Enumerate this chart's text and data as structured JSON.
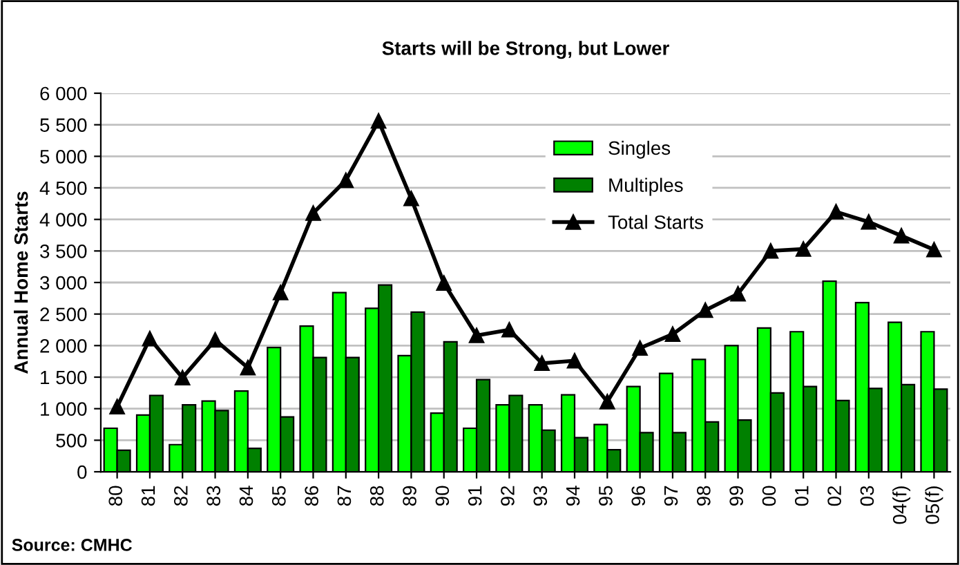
{
  "chart_data": {
    "type": "bar",
    "title": "Starts will be Strong, but Lower",
    "ylabel": "Annual Home Starts",
    "categories": [
      "80",
      "81",
      "82",
      "83",
      "84",
      "85",
      "86",
      "87",
      "88",
      "89",
      "90",
      "91",
      "92",
      "93",
      "94",
      "95",
      "96",
      "97",
      "98",
      "99",
      "00",
      "01",
      "02",
      "03",
      "04(f)",
      "05(f)"
    ],
    "series": [
      {
        "name": "Singles",
        "color": "#00ff00",
        "values": [
          690,
          900,
          430,
          1120,
          1280,
          1970,
          2310,
          2840,
          2590,
          1840,
          930,
          690,
          1060,
          1060,
          1220,
          750,
          1350,
          1560,
          1780,
          2000,
          2280,
          2220,
          3020,
          2680,
          2370,
          2220
        ]
      },
      {
        "name": "Multiples",
        "color": "#008000",
        "values": [
          340,
          1210,
          1060,
          970,
          370,
          870,
          1810,
          1810,
          2960,
          2530,
          2060,
          1460,
          1210,
          660,
          540,
          350,
          620,
          620,
          790,
          820,
          1250,
          1350,
          1130,
          1320,
          1380,
          1310
        ]
      },
      {
        "name": "Total Starts",
        "type": "line",
        "color": "#000000",
        "marker": "triangle",
        "values": [
          1030,
          2110,
          1490,
          2090,
          1650,
          2840,
          4100,
          4620,
          5560,
          4330,
          2990,
          2160,
          2250,
          1720,
          1760,
          1110,
          1960,
          2180,
          2560,
          2820,
          3500,
          3530,
          4120,
          3960,
          3740,
          3520
        ]
      }
    ],
    "ylim": [
      0,
      6000
    ],
    "yticks": [
      0,
      500,
      {
        "value": 1000,
        "label": "1 000"
      },
      {
        "value": 1500,
        "label": "1 500"
      },
      {
        "value": 2000,
        "label": "2 000"
      },
      {
        "value": 2500,
        "label": "2 500"
      },
      {
        "value": 3000,
        "label": "3 000"
      },
      {
        "value": 3500,
        "label": "3 500"
      },
      {
        "value": 4000,
        "label": "4 000"
      },
      {
        "value": 4500,
        "label": "4 500"
      },
      {
        "value": 5000,
        "label": "5 000"
      },
      {
        "value": 5500,
        "label": "5 500"
      },
      {
        "value": 6000,
        "label": "6 000"
      }
    ],
    "grid": "y",
    "legend": "top right",
    "annotations": [
      "Source: CMHC"
    ]
  }
}
